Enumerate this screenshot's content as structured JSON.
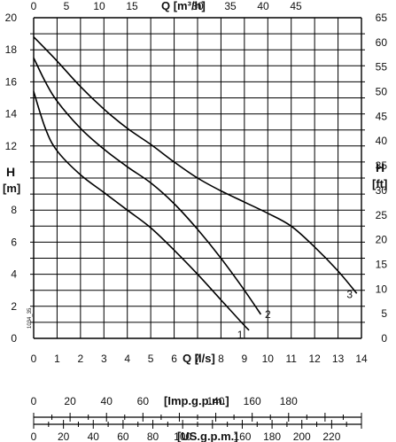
{
  "chart_data": {
    "type": "line",
    "code_label": "1034_35",
    "axes": {
      "left": {
        "label_line1": "H",
        "label_line2": "[m]",
        "min": 0,
        "max": 20,
        "ticks": [
          "0",
          "2",
          "4",
          "6",
          "8",
          "",
          "12",
          "14",
          "16",
          "18",
          "20"
        ]
      },
      "right": {
        "label_line1": "H",
        "label_line2": "[ft]",
        "min": 0,
        "max": 65,
        "ticks": [
          "0",
          "5",
          "10",
          "15",
          "20",
          "25",
          "30",
          "35",
          "40",
          "45",
          "50",
          "55",
          "60",
          "65"
        ]
      },
      "bottom": {
        "label": "Q [l/s]",
        "min": 0,
        "max": 14,
        "ticks": [
          "0",
          "1",
          "2",
          "3",
          "4",
          "5",
          "6",
          "7",
          "8",
          "9",
          "10",
          "11",
          "12",
          "13",
          "14"
        ]
      },
      "top": {
        "label": "Q [m³/h]",
        "min": 0,
        "max": 50,
        "ticks": [
          "0",
          "5",
          "10",
          "15",
          "",
          "30",
          "35",
          "40",
          "45"
        ]
      },
      "imp_gpm": {
        "label": "[Imp.g.p.m.]",
        "min": 0,
        "max": 180,
        "ticks": [
          "0",
          "20",
          "40",
          "60",
          "",
          "140",
          "160",
          "180"
        ]
      },
      "us_gpm": {
        "label": "[US.g.p.m.]",
        "min": 0,
        "max": 220,
        "ticks": [
          "0",
          "20",
          "40",
          "60",
          "80",
          "100",
          "",
          "160",
          "180",
          "200",
          "220"
        ]
      }
    },
    "grid": true,
    "series": [
      {
        "name": "1",
        "points": [
          [
            0,
            15.4
          ],
          [
            0.5,
            13.1
          ],
          [
            1,
            11.7
          ],
          [
            2,
            10.2
          ],
          [
            3,
            9.1
          ],
          [
            4,
            8
          ],
          [
            5,
            6.9
          ],
          [
            6,
            5.5
          ],
          [
            7,
            4
          ],
          [
            8,
            2.4
          ],
          [
            8.5,
            1.6
          ],
          [
            9,
            0.8
          ],
          [
            9.2,
            0.5
          ]
        ]
      },
      {
        "name": "2",
        "points": [
          [
            0,
            17.5
          ],
          [
            0.5,
            16
          ],
          [
            1,
            14.8
          ],
          [
            2,
            13.1
          ],
          [
            3,
            11.8
          ],
          [
            4,
            10.7
          ],
          [
            5,
            9.7
          ],
          [
            6,
            8.4
          ],
          [
            7,
            6.8
          ],
          [
            8,
            5
          ],
          [
            9,
            3
          ],
          [
            9.7,
            1.5
          ]
        ]
      },
      {
        "name": "3",
        "points": [
          [
            0,
            18.8
          ],
          [
            1,
            17.3
          ],
          [
            2,
            15.7
          ],
          [
            3,
            14.3
          ],
          [
            4,
            13.1
          ],
          [
            5,
            12.1
          ],
          [
            6,
            11
          ],
          [
            7,
            10
          ],
          [
            8,
            9.2
          ],
          [
            9,
            8.5
          ],
          [
            10,
            7.8
          ],
          [
            11,
            7
          ],
          [
            12,
            5.7
          ],
          [
            13,
            4.2
          ],
          [
            13.8,
            2.8
          ]
        ]
      }
    ]
  }
}
